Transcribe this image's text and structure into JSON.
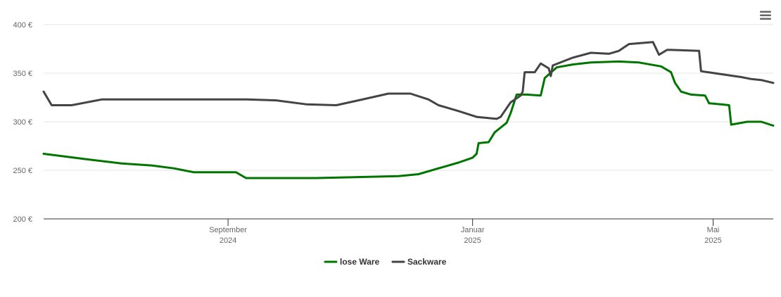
{
  "chart_data": {
    "type": "line",
    "title": "",
    "xlabel": "",
    "ylabel": "",
    "x_range": [
      "2024-06-01",
      "2025-05-31"
    ],
    "ylim": [
      200,
      400
    ],
    "y_ticks": [
      200,
      250,
      300,
      350,
      400
    ],
    "y_tick_labels": [
      "200 €",
      "250 €",
      "300 €",
      "350 €",
      "400 €"
    ],
    "x_ticks": [
      {
        "date": "2024-09-01",
        "label": "September",
        "sublabel": "2024"
      },
      {
        "date": "2025-01-01",
        "label": "Januar",
        "sublabel": "2025"
      },
      {
        "date": "2025-05-01",
        "label": "Mai",
        "sublabel": "2025"
      }
    ],
    "grid": true,
    "legend_position": "bottom-center",
    "series": [
      {
        "name": "lose Ware",
        "color": "#007500",
        "points": [
          [
            "2024-06-01",
            267
          ],
          [
            "2024-06-20",
            262
          ],
          [
            "2024-07-10",
            257
          ],
          [
            "2024-07-25",
            255
          ],
          [
            "2024-08-05",
            252
          ],
          [
            "2024-08-15",
            248
          ],
          [
            "2024-08-30",
            248
          ],
          [
            "2024-09-05",
            248
          ],
          [
            "2024-09-10",
            242
          ],
          [
            "2024-10-15",
            242
          ],
          [
            "2024-11-25",
            244
          ],
          [
            "2024-12-05",
            246
          ],
          [
            "2024-12-15",
            252
          ],
          [
            "2024-12-25",
            258
          ],
          [
            "2025-01-01",
            263
          ],
          [
            "2025-01-03",
            267
          ],
          [
            "2025-01-04",
            278
          ],
          [
            "2025-01-09",
            279
          ],
          [
            "2025-01-12",
            289
          ],
          [
            "2025-01-18",
            299
          ],
          [
            "2025-01-20",
            309
          ],
          [
            "2025-01-23",
            328
          ],
          [
            "2025-01-28",
            328
          ],
          [
            "2025-02-04",
            327
          ],
          [
            "2025-02-06",
            345
          ],
          [
            "2025-02-12",
            356
          ],
          [
            "2025-02-20",
            359
          ],
          [
            "2025-03-01",
            361
          ],
          [
            "2025-03-15",
            362
          ],
          [
            "2025-03-25",
            361
          ],
          [
            "2025-04-05",
            357
          ],
          [
            "2025-04-10",
            351
          ],
          [
            "2025-04-12",
            340
          ],
          [
            "2025-04-15",
            331
          ],
          [
            "2025-04-20",
            328
          ],
          [
            "2025-04-27",
            327
          ],
          [
            "2025-04-29",
            319
          ],
          [
            "2025-05-05",
            318
          ],
          [
            "2025-05-09",
            317
          ],
          [
            "2025-05-10",
            297
          ],
          [
            "2025-05-18",
            300
          ],
          [
            "2025-05-25",
            300
          ],
          [
            "2025-05-31",
            296
          ]
        ]
      },
      {
        "name": "Sackware",
        "color": "#444444",
        "points": [
          [
            "2024-06-01",
            331
          ],
          [
            "2024-06-05",
            317
          ],
          [
            "2024-06-15",
            317
          ],
          [
            "2024-06-30",
            323
          ],
          [
            "2024-08-15",
            323
          ],
          [
            "2024-09-10",
            323
          ],
          [
            "2024-09-25",
            322
          ],
          [
            "2024-10-10",
            318
          ],
          [
            "2024-10-25",
            317
          ],
          [
            "2024-11-05",
            322
          ],
          [
            "2024-11-20",
            329
          ],
          [
            "2024-12-01",
            329
          ],
          [
            "2024-12-10",
            323
          ],
          [
            "2024-12-15",
            317
          ],
          [
            "2024-12-25",
            311
          ],
          [
            "2025-01-03",
            305
          ],
          [
            "2025-01-13",
            303
          ],
          [
            "2025-01-15",
            305
          ],
          [
            "2025-01-20",
            320
          ],
          [
            "2025-01-25",
            327
          ],
          [
            "2025-01-26",
            331
          ],
          [
            "2025-01-27",
            351
          ],
          [
            "2025-02-01",
            351
          ],
          [
            "2025-02-04",
            360
          ],
          [
            "2025-02-08",
            355
          ],
          [
            "2025-02-09",
            347
          ],
          [
            "2025-02-10",
            358
          ],
          [
            "2025-02-20",
            366
          ],
          [
            "2025-03-01",
            371
          ],
          [
            "2025-03-10",
            370
          ],
          [
            "2025-03-15",
            373
          ],
          [
            "2025-03-20",
            380
          ],
          [
            "2025-04-01",
            382
          ],
          [
            "2025-04-04",
            369
          ],
          [
            "2025-04-08",
            374
          ],
          [
            "2025-04-10",
            374
          ],
          [
            "2025-04-24",
            373
          ],
          [
            "2025-04-25",
            352
          ],
          [
            "2025-05-15",
            346
          ],
          [
            "2025-05-20",
            344
          ],
          [
            "2025-05-25",
            343
          ],
          [
            "2025-05-31",
            340
          ]
        ]
      }
    ]
  }
}
